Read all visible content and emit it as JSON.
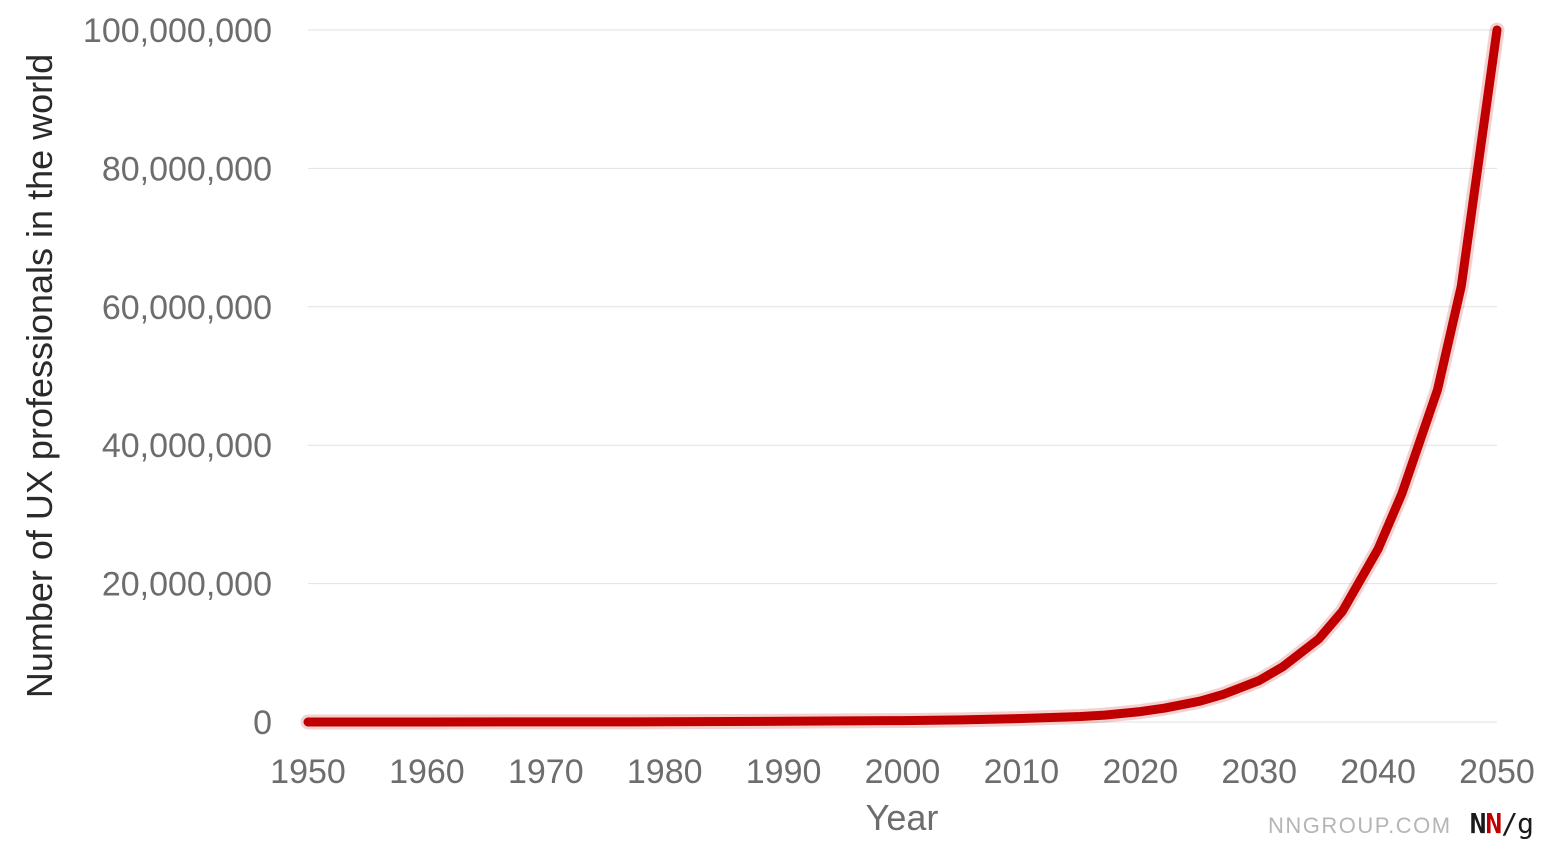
{
  "chart_data": {
    "type": "line",
    "title": "",
    "xlabel": "Year",
    "ylabel": "Number of UX professionals in the world",
    "xlim": [
      1950,
      2050
    ],
    "ylim": [
      0,
      100000000
    ],
    "x_ticks": [
      1950,
      1960,
      1970,
      1980,
      1990,
      2000,
      2010,
      2020,
      2030,
      2040,
      2050
    ],
    "x_tick_labels": [
      "1950",
      "1960",
      "1970",
      "1980",
      "1990",
      "2000",
      "2010",
      "2020",
      "2030",
      "2040",
      "2050"
    ],
    "y_ticks": [
      0,
      20000000,
      40000000,
      60000000,
      80000000,
      100000000
    ],
    "y_tick_labels": [
      "0",
      "20,000,000",
      "40,000,000",
      "60,000,000",
      "80,000,000",
      "100,000,000"
    ],
    "grid": "horizontal",
    "legend": "none",
    "colors": {
      "series": "#c00000",
      "grid": "#e2e2e2",
      "tick_text": "#6d6d6d"
    },
    "series": [
      {
        "x": [
          1950,
          1960,
          1970,
          1980,
          1990,
          2000,
          2005,
          2010,
          2015,
          2017,
          2020,
          2022,
          2025,
          2027,
          2030,
          2032,
          2035,
          2037,
          2040,
          2042,
          2045,
          2047,
          2050
        ],
        "values": [
          1000,
          3000,
          10000,
          30000,
          100000,
          200000,
          300000,
          500000,
          800000,
          1000000,
          1500000,
          2000000,
          3000000,
          4000000,
          6000000,
          8000000,
          12000000,
          16000000,
          25000000,
          33000000,
          48000000,
          63000000,
          100000000
        ]
      }
    ]
  },
  "branding": {
    "site": "NNGROUP.COM",
    "logo_n1": "N",
    "logo_n2": "N",
    "logo_slash": "/",
    "logo_g": "g"
  }
}
